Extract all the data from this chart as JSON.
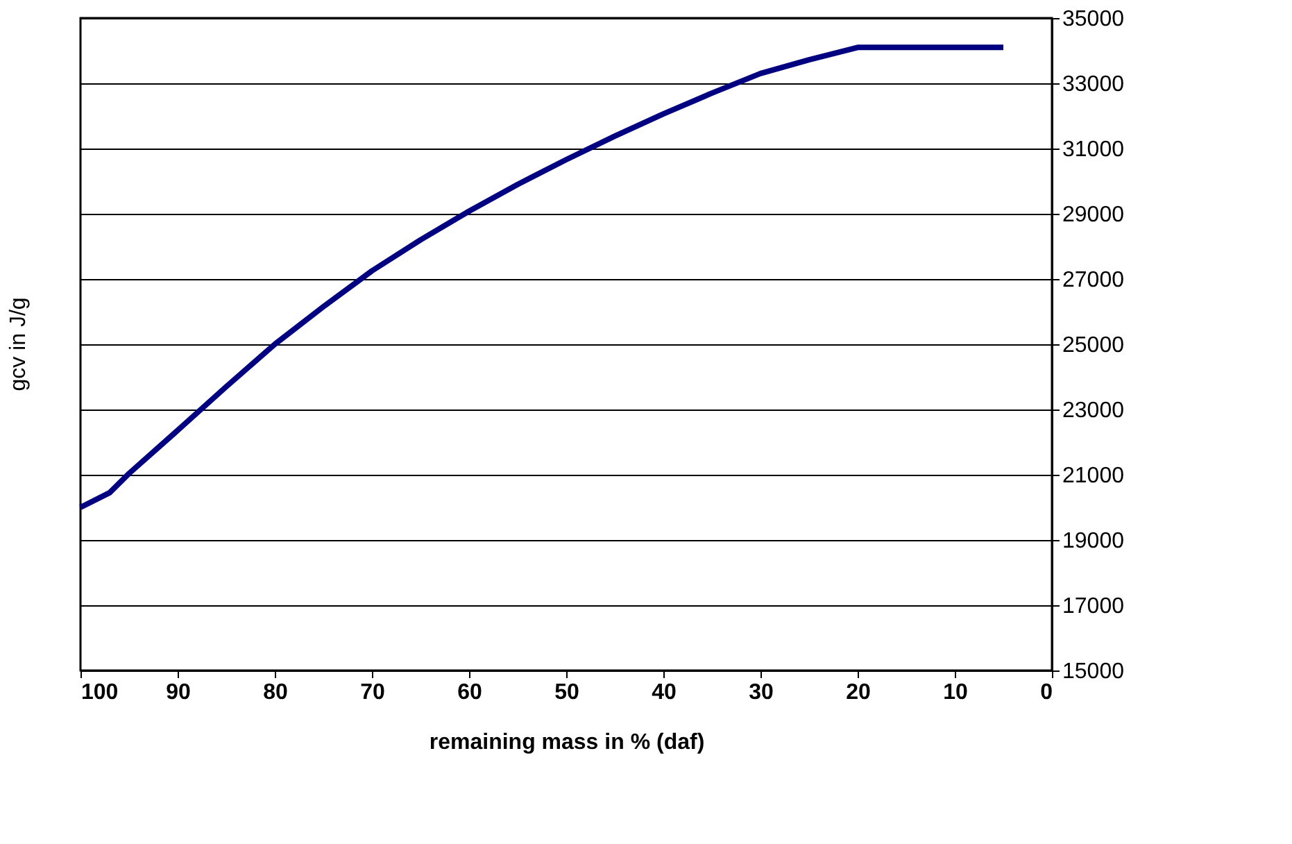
{
  "chart_data": {
    "type": "line",
    "xlabel": "remaining mass in %  (daf)",
    "ylabel": "gcv in J/g",
    "x": [
      100,
      97,
      95,
      90,
      85,
      80,
      75,
      70,
      65,
      60,
      55,
      50,
      45,
      40,
      35,
      30,
      25,
      20,
      15,
      10,
      5
    ],
    "series": [
      {
        "color": "#000080",
        "values": [
          20000,
          20450,
          21040,
          22360,
          23700,
          25000,
          26150,
          27250,
          28200,
          29080,
          29900,
          30660,
          31380,
          32060,
          32700,
          33300,
          33720,
          34100,
          34100,
          34100,
          34100
        ]
      }
    ],
    "xlim": [
      100,
      0
    ],
    "xticks": [
      100,
      90,
      80,
      70,
      60,
      50,
      40,
      30,
      20,
      10,
      0
    ],
    "ylim": [
      15000,
      35000
    ],
    "yticks": [
      15000,
      17000,
      19000,
      21000,
      23000,
      25000,
      27000,
      29000,
      31000,
      33000,
      35000
    ],
    "grid": "y",
    "marker": "none",
    "line_style": "solid"
  }
}
